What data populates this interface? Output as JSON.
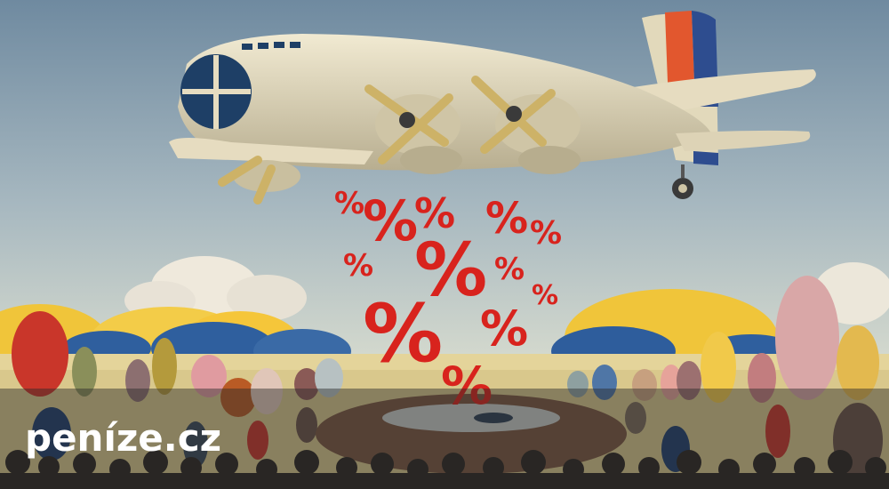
{
  "image": {
    "subject": "airplane-dropping-percent-signs",
    "palette": {
      "sky_top": "#6f8aa0",
      "sky_bottom": "#cfd6cc",
      "plane_body": "#e6dcc0",
      "percent_red": "#d8231d",
      "field": "#d9c88c",
      "hill_yellow": "#f0c53a",
      "hill_blue": "#2f5f9e",
      "tail_red": "#e2572e",
      "tail_blue": "#2e4d8f"
    }
  },
  "percent_glyph": "%",
  "watermark": {
    "text": "peníze.cz"
  }
}
